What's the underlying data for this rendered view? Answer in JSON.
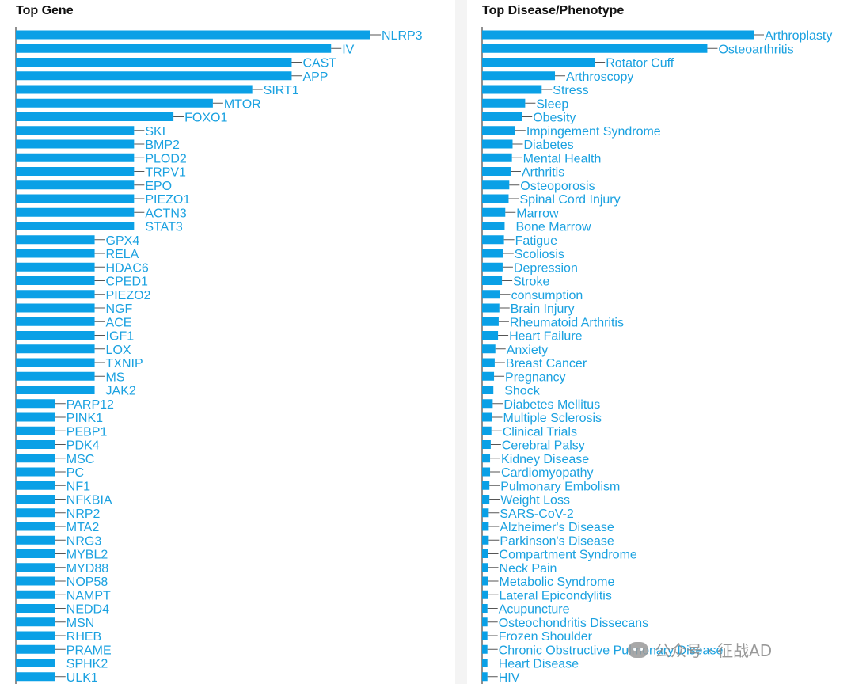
{
  "watermark": {
    "text": "公众号 · 征战AD"
  },
  "chart_data": [
    {
      "type": "bar",
      "orientation": "horizontal",
      "title": "Top Gene",
      "xlabel": "",
      "ylabel": "",
      "grid": false,
      "categories": [
        "NLRP3",
        "IV",
        "CAST",
        "APP",
        "SIRT1",
        "MTOR",
        "FOXO1",
        "SKI",
        "BMP2",
        "PLOD2",
        "TRPV1",
        "EPO",
        "PIEZO1",
        "ACTN3",
        "STAT3",
        "GPX4",
        "RELA",
        "HDAC6",
        "CPED1",
        "PIEZO2",
        "NGF",
        "ACE",
        "IGF1",
        "LOX",
        "TXNIP",
        "MS",
        "JAK2",
        "PARP12",
        "PINK1",
        "PEBP1",
        "PDK4",
        "MSC",
        "PC",
        "NF1",
        "NFKBIA",
        "NRP2",
        "MTA2",
        "NRG3",
        "MYBL2",
        "MYD88",
        "NOP58",
        "NAMPT",
        "NEDD4",
        "MSN",
        "RHEB",
        "PRAME",
        "SPHK2",
        "ULK1"
      ],
      "values": [
        9,
        8,
        7,
        7,
        6,
        5,
        4,
        3,
        3,
        3,
        3,
        3,
        3,
        3,
        3,
        2,
        2,
        2,
        2,
        2,
        2,
        2,
        2,
        2,
        2,
        2,
        2,
        1,
        1,
        1,
        1,
        1,
        1,
        1,
        1,
        1,
        1,
        1,
        1,
        1,
        1,
        1,
        1,
        1,
        1,
        1,
        1,
        1
      ]
    },
    {
      "type": "bar",
      "orientation": "horizontal",
      "title": "Top Disease/Phenotype",
      "xlabel": "",
      "ylabel": "",
      "grid": false,
      "categories": [
        "Arthroplasty",
        "Osteoarthritis",
        "Rotator Cuff",
        "Arthroscopy",
        "Stress",
        "Sleep",
        "Obesity",
        "Impingement Syndrome",
        "Diabetes",
        "Mental Health",
        "Arthritis",
        "Osteoporosis",
        "Spinal Cord Injury",
        "Marrow",
        "Bone Marrow",
        "Fatigue",
        "Scoliosis",
        "Depression",
        "Stroke",
        "consumption",
        "Brain Injury",
        "Rheumatoid Arthritis",
        "Heart Failure",
        "Anxiety",
        "Breast Cancer",
        "Pregnancy",
        "Shock",
        "Diabetes Mellitus",
        "Multiple Sclerosis",
        "Clinical Trials",
        "Cerebral Palsy",
        "Kidney Disease",
        "Cardiomyopathy",
        "Pulmonary Embolism",
        "Weight Loss",
        "SARS-CoV-2",
        "Alzheimer's Disease",
        "Parkinson's Disease",
        "Compartment Syndrome",
        "Neck Pain",
        "Metabolic Syndrome",
        "Lateral Epicondylitis",
        "Acupuncture",
        "Osteochondritis Dissecans",
        "Frozen Shoulder",
        "Chronic Obstructive Pulmonary Disease",
        "Heart Disease",
        "HIV"
      ],
      "values": [
        41,
        34,
        17,
        11,
        9,
        6.5,
        6,
        5,
        4.6,
        4.5,
        4.3,
        4.1,
        4,
        3.5,
        3.4,
        3.3,
        3.2,
        3.1,
        3,
        2.7,
        2.6,
        2.5,
        2.4,
        2,
        1.9,
        1.8,
        1.7,
        1.6,
        1.5,
        1.4,
        1.3,
        1.2,
        1.2,
        1.1,
        1.1,
        1,
        1,
        1,
        0.9,
        0.9,
        0.9,
        0.9,
        0.8,
        0.8,
        0.8,
        0.8,
        0.8,
        0.8
      ]
    }
  ]
}
